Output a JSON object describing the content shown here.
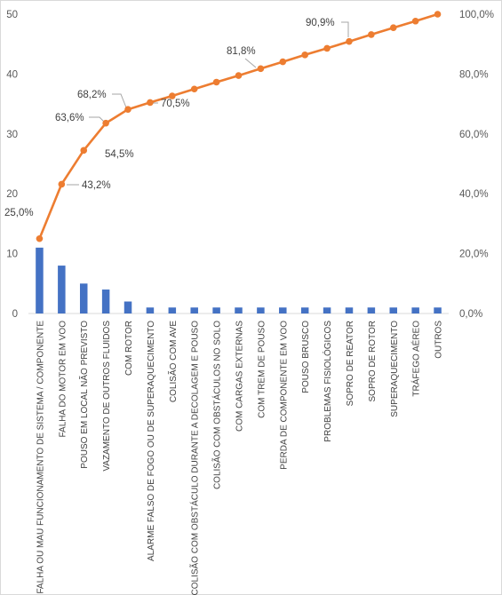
{
  "chart_data": {
    "type": "bar+line",
    "title": "",
    "categories": [
      "FALHA OU MAU FUNCIONAMENTO DE SISTEMA / COMPONENTE",
      "FALHA DO MOTOR EM VOO",
      "POUSO EM LOCAL NÃO PREVISTO",
      "VAZAMENTO DE OUTROS FLUIDOS",
      "COM ROTOR",
      "ALARME FALSO DE FOGO OU DE SUPERAQUECIMENTO",
      "COLISÃO COM AVE",
      "COLISÃO COM OBSTÁCULO DURANTE A DECOLAGEM E POUSO",
      "COLISÃO COM OBSTÁCULOS NO SOLO",
      "COM CARGAS EXTERNAS",
      "COM TREM DE POUSO",
      "PERDA DE COMPONENTE EM VOO",
      "POUSO BRUSCO",
      "PROBLEMAS FISIOLÓGICOS",
      "SOPRO DE REATOR",
      "SOPRO DE ROTOR",
      "SUPERAQUECIMENTO",
      "TRÁFEGO AÉREO",
      "OUTROS"
    ],
    "series": [
      {
        "type": "bar",
        "axis": "left",
        "color": "#4472c4",
        "values": [
          11,
          8,
          5,
          4,
          2,
          1,
          1,
          1,
          1,
          1,
          1,
          1,
          1,
          1,
          1,
          1,
          1,
          1,
          1
        ]
      },
      {
        "type": "line",
        "axis": "right",
        "color": "#ed7d31",
        "values": [
          25.0,
          43.2,
          54.5,
          63.6,
          68.2,
          70.5,
          72.7,
          75.0,
          77.3,
          79.5,
          81.8,
          84.1,
          86.4,
          88.6,
          90.9,
          93.2,
          95.5,
          97.7,
          100.0
        ]
      }
    ],
    "data_labels": [
      {
        "index": 0,
        "text": "25,0%"
      },
      {
        "index": 1,
        "text": "43,2%"
      },
      {
        "index": 2,
        "text": "54,5%"
      },
      {
        "index": 3,
        "text": "63,6%"
      },
      {
        "index": 4,
        "text": "68,2%"
      },
      {
        "index": 5,
        "text": "70,5%"
      },
      {
        "index": 10,
        "text": "81,8%"
      },
      {
        "index": 14,
        "text": "90,9%"
      }
    ],
    "y_left": {
      "ylim": [
        0,
        50
      ],
      "ticks": [
        0,
        10,
        20,
        30,
        40,
        50
      ],
      "tick_labels": [
        "0",
        "10",
        "20",
        "30",
        "40",
        "50"
      ]
    },
    "y_right": {
      "ylim": [
        0,
        100
      ],
      "ticks": [
        0,
        20,
        40,
        60,
        80,
        100
      ],
      "tick_labels": [
        "0,0%",
        "20,0%",
        "40,0%",
        "60,0%",
        "80,0%",
        "100,0%"
      ]
    },
    "xlabel": "",
    "ylabel": "",
    "grid": false,
    "legend": "none"
  }
}
